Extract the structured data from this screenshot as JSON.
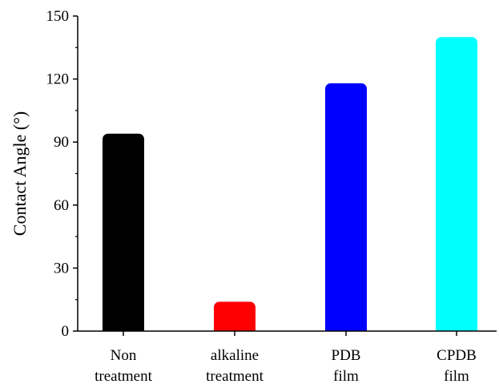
{
  "chart_data": {
    "type": "bar",
    "categories": [
      [
        "Non",
        "treatment"
      ],
      [
        "alkaline",
        "treatment"
      ],
      [
        "PDB",
        "film"
      ],
      [
        "CPDB",
        "film"
      ]
    ],
    "values": [
      94,
      14,
      118,
      140
    ],
    "colors": [
      "#000000",
      "#ff0000",
      "#0000ff",
      "#00ffff"
    ],
    "title": "",
    "xlabel": "",
    "ylabel": "Contact Angle (°)",
    "ylim": [
      0,
      150
    ],
    "yticks": [
      0,
      30,
      60,
      90,
      120,
      150
    ],
    "grid": false,
    "legend": "none"
  }
}
